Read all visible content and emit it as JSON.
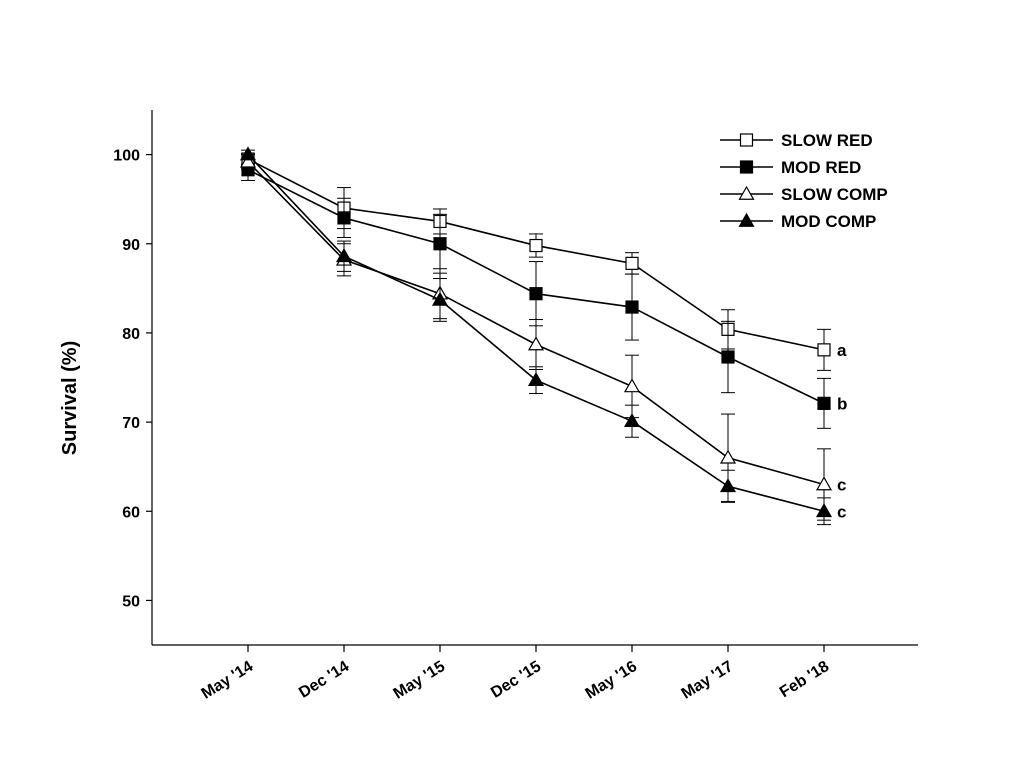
{
  "chart_data": {
    "type": "line",
    "xlabel": "",
    "ylabel": "Survival (%)",
    "categories": [
      "May '14",
      "Dec '14",
      "May '15",
      "Dec '15",
      "May '16",
      "May '17",
      "Feb '18"
    ],
    "ylim": [
      45,
      105
    ],
    "yticks": [
      50,
      60,
      70,
      80,
      90,
      100
    ],
    "grid": false,
    "legend_position": "top-right",
    "series": [
      {
        "name": "SLOW RED",
        "marker": "square-open",
        "values": [
          99.5,
          94.0,
          92.5,
          89.8,
          87.8,
          80.4,
          78.1
        ],
        "errors": [
          0.6,
          2.3,
          1.4,
          1.3,
          1.2,
          2.2,
          2.3
        ],
        "significance": "a"
      },
      {
        "name": "MOD RED",
        "marker": "square-filled",
        "values": [
          98.3,
          92.9,
          90.0,
          84.4,
          82.9,
          77.3,
          72.1
        ],
        "errors": [
          1.2,
          2.2,
          3.3,
          3.6,
          3.7,
          4.0,
          2.8
        ],
        "significance": "b"
      },
      {
        "name": "SLOW COMP",
        "marker": "triangle-open",
        "values": [
          99.2,
          88.2,
          84.4,
          78.7,
          74.0,
          66.0,
          63.0
        ],
        "errors": [
          0.8,
          1.8,
          2.8,
          2.8,
          3.5,
          4.9,
          4.0
        ],
        "significance": "c"
      },
      {
        "name": "MOD COMP",
        "marker": "triangle-filled",
        "values": [
          100.0,
          88.6,
          83.7,
          74.7,
          70.1,
          62.8,
          60.0
        ],
        "errors": [
          0.5,
          1.7,
          2.4,
          1.5,
          1.8,
          1.8,
          1.5
        ],
        "significance": "c"
      }
    ]
  }
}
